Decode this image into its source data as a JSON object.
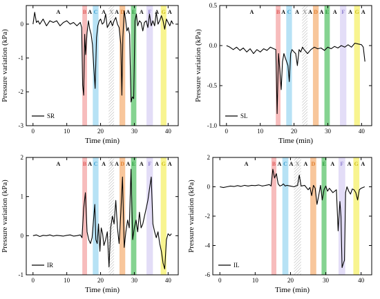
{
  "colors": {
    "A": "#ffffff",
    "B": "#f4a6a6",
    "C": "#9fd8f2",
    "X": "hatched",
    "D": "#f6b37a",
    "E": "#5cc46c",
    "F": "#d9d2f4",
    "G": "#f5f06a",
    "line": "#000000"
  },
  "band_letter_colors": {
    "A": "#000000",
    "B": "#e06060",
    "C": "#40a0d0",
    "X": "#999999",
    "D": "#e08030",
    "E": "#30a040",
    "F": "#9080d0",
    "G": "#d0c020"
  },
  "chart_data": [
    {
      "type": "line",
      "panel": "top-left",
      "xlabel": "Time (min)",
      "ylabel": "Pressure variation (kPa)",
      "xlim": [
        -2,
        43
      ],
      "ylim": [
        -3,
        0.55
      ],
      "xticks": [
        0,
        10,
        20,
        30,
        40
      ],
      "yticks": [
        -3,
        -2,
        -1,
        0
      ],
      "ytick_labels": [
        "-3",
        "-2",
        "-1",
        "0"
      ],
      "legend": {
        "label": "SR",
        "placement": "bottom-left"
      },
      "bands": [
        {
          "letter": "A",
          "start": 7.5,
          "end": 7.5
        },
        {
          "letter": "B",
          "start": 14.6,
          "end": 16.0
        },
        {
          "letter": "A",
          "start": 16.0,
          "end": 17.7
        },
        {
          "letter": "C",
          "start": 17.7,
          "end": 19.4
        },
        {
          "letter": "A",
          "start": 19.4,
          "end": 22.4
        },
        {
          "letter": "X",
          "start": 22.4,
          "end": 24.0
        },
        {
          "letter": "A",
          "start": 24.0,
          "end": 25.6
        },
        {
          "letter": "D",
          "start": 25.6,
          "end": 27.3
        },
        {
          "letter": "A",
          "start": 27.3,
          "end": 29.0
        },
        {
          "letter": "E",
          "start": 29.0,
          "end": 30.6
        },
        {
          "letter": "A",
          "start": 30.6,
          "end": 33.6
        },
        {
          "letter": "F",
          "start": 33.6,
          "end": 35.5
        },
        {
          "letter": "A",
          "start": 35.5,
          "end": 37.8
        },
        {
          "letter": "G",
          "start": 37.8,
          "end": 39.5
        },
        {
          "letter": "A",
          "start": 39.5,
          "end": 41.5
        }
      ],
      "x": [
        0,
        0.5,
        1,
        1.5,
        2,
        3,
        4,
        5,
        6,
        7,
        8,
        9,
        10,
        11,
        12,
        13,
        14,
        14.4,
        14.7,
        15.0,
        15.3,
        15.6,
        16.0,
        16.4,
        16.8,
        17.2,
        17.6,
        18.0,
        18.4,
        18.8,
        19.2,
        19.6,
        20.0,
        20.5,
        21,
        21.5,
        22,
        22.5,
        23,
        23.5,
        24,
        24.5,
        25,
        25.5,
        26,
        26.3,
        26.6,
        27,
        27.4,
        27.8,
        28.2,
        28.6,
        29.0,
        29.4,
        29.8,
        30.2,
        30.6,
        31,
        31.5,
        32,
        32.5,
        33,
        33.5,
        34,
        34.5,
        35,
        35.5,
        36,
        36.5,
        37,
        37.5,
        38,
        38.5,
        39,
        39.5,
        40,
        40.5,
        41,
        41.5
      ],
      "y": [
        0.0,
        0.35,
        0.05,
        0.1,
        0.0,
        0.15,
        -0.05,
        0.1,
        0.05,
        0.1,
        -0.05,
        0.05,
        0.1,
        0.0,
        0.05,
        -0.05,
        0.05,
        -0.1,
        -1.8,
        -2.1,
        -0.3,
        -0.9,
        -0.25,
        0.1,
        -0.15,
        -0.3,
        -0.6,
        -1.3,
        -1.9,
        -0.4,
        -0.05,
        0.1,
        0.15,
        0.0,
        0.05,
        0.3,
        -0.1,
        0.0,
        0.1,
        -0.05,
        0.1,
        0.2,
        0.0,
        -0.1,
        -0.6,
        -2.1,
        -0.4,
        0.4,
        0.15,
        -0.2,
        -0.1,
        -0.3,
        -2.3,
        -2.15,
        -2.2,
        0.1,
        0.3,
        -0.05,
        0.1,
        0.05,
        -0.2,
        0.05,
        0.1,
        -0.1,
        0.3,
        -0.05,
        0.1,
        -0.05,
        0.35,
        0.0,
        0.1,
        0.25,
        0.1,
        -0.15,
        0.15,
        0.05,
        -0.05,
        0.1,
        0.0
      ]
    },
    {
      "type": "line",
      "panel": "top-right",
      "xlabel": "Time (min)",
      "ylabel": "Pressure variation (kPa)",
      "xlim": [
        -2,
        43
      ],
      "ylim": [
        -1.0,
        0.5
      ],
      "xticks": [
        0,
        10,
        20,
        30,
        40
      ],
      "yticks": [
        -1.0,
        -0.5,
        0.0,
        0.5
      ],
      "ytick_labels": [
        "-1.0",
        "-0.5",
        "0.0",
        "0.5"
      ],
      "legend": {
        "label": "SL",
        "placement": "bottom-left"
      },
      "bands": [
        {
          "letter": "A",
          "start": 7.5,
          "end": 7.5
        },
        {
          "letter": "B",
          "start": 14.6,
          "end": 16.0
        },
        {
          "letter": "A",
          "start": 16.0,
          "end": 17.7
        },
        {
          "letter": "C",
          "start": 17.7,
          "end": 19.4
        },
        {
          "letter": "A",
          "start": 19.4,
          "end": 22.4
        },
        {
          "letter": "X",
          "start": 22.4,
          "end": 24.0
        },
        {
          "letter": "A",
          "start": 24.0,
          "end": 25.6
        },
        {
          "letter": "D",
          "start": 25.6,
          "end": 27.3
        },
        {
          "letter": "A",
          "start": 27.3,
          "end": 29.0
        },
        {
          "letter": "E",
          "start": 29.0,
          "end": 30.6
        },
        {
          "letter": "A",
          "start": 30.6,
          "end": 33.6
        },
        {
          "letter": "F",
          "start": 33.6,
          "end": 35.5
        },
        {
          "letter": "A",
          "start": 35.5,
          "end": 37.8
        },
        {
          "letter": "G",
          "start": 37.8,
          "end": 39.5
        },
        {
          "letter": "A",
          "start": 39.5,
          "end": 41.5
        }
      ],
      "x": [
        0,
        1,
        2,
        3,
        4,
        5,
        6,
        7,
        8,
        9,
        10,
        11,
        12,
        13,
        14,
        14.6,
        15.0,
        15.4,
        15.8,
        16.2,
        16.6,
        17.0,
        17.4,
        17.8,
        18.2,
        18.6,
        19.0,
        19.4,
        20,
        20.5,
        21,
        21.5,
        22,
        22.5,
        23,
        24,
        25,
        26,
        27,
        28,
        29,
        30,
        31,
        32,
        33,
        34,
        35,
        36,
        37,
        38,
        39,
        40,
        40.5,
        41
      ],
      "y": [
        0.0,
        -0.02,
        -0.05,
        -0.02,
        -0.06,
        -0.03,
        -0.08,
        -0.04,
        -0.1,
        -0.05,
        -0.08,
        -0.04,
        -0.06,
        -0.02,
        -0.04,
        -0.05,
        -0.85,
        -0.1,
        -0.3,
        -0.55,
        -0.2,
        -0.1,
        -0.15,
        -0.2,
        -0.25,
        -0.45,
        -0.1,
        -0.05,
        -0.08,
        -0.1,
        -0.25,
        -0.05,
        -0.08,
        -0.02,
        -0.05,
        -0.1,
        -0.05,
        -0.02,
        -0.04,
        -0.03,
        -0.06,
        -0.02,
        -0.04,
        -0.01,
        -0.03,
        0.0,
        -0.02,
        0.01,
        -0.02,
        0.03,
        0.02,
        0.01,
        -0.02,
        -0.2
      ]
    },
    {
      "type": "line",
      "panel": "bottom-left",
      "xlabel": "Time (min)",
      "ylabel": "Pressure variation (kPa)",
      "xlim": [
        -2,
        43
      ],
      "ylim": [
        -1,
        2
      ],
      "xticks": [
        0,
        10,
        20,
        30,
        40
      ],
      "yticks": [
        -1,
        0,
        1,
        2
      ],
      "ytick_labels": [
        "-1",
        "0",
        "1",
        "2"
      ],
      "legend": {
        "label": "IR",
        "placement": "bottom-left"
      },
      "bands": [
        {
          "letter": "A",
          "start": 7.5,
          "end": 7.5
        },
        {
          "letter": "B",
          "start": 14.6,
          "end": 16.0
        },
        {
          "letter": "A",
          "start": 16.0,
          "end": 17.7
        },
        {
          "letter": "C",
          "start": 17.7,
          "end": 19.4
        },
        {
          "letter": "A",
          "start": 19.4,
          "end": 22.4
        },
        {
          "letter": "X",
          "start": 22.4,
          "end": 24.0
        },
        {
          "letter": "A",
          "start": 24.0,
          "end": 25.6
        },
        {
          "letter": "D",
          "start": 25.6,
          "end": 27.3
        },
        {
          "letter": "A",
          "start": 27.3,
          "end": 29.0
        },
        {
          "letter": "E",
          "start": 29.0,
          "end": 30.6
        },
        {
          "letter": "A",
          "start": 30.6,
          "end": 33.6
        },
        {
          "letter": "F",
          "start": 33.6,
          "end": 35.5
        },
        {
          "letter": "A",
          "start": 35.5,
          "end": 37.8
        },
        {
          "letter": "G",
          "start": 37.8,
          "end": 39.5
        },
        {
          "letter": "A",
          "start": 39.5,
          "end": 41.5
        }
      ],
      "x": [
        0,
        1,
        2,
        3,
        4,
        5,
        6,
        7,
        8,
        9,
        10,
        11,
        12,
        13,
        14,
        14.5,
        15.0,
        15.5,
        16.0,
        16.5,
        17.0,
        17.5,
        18.0,
        18.3,
        18.6,
        19.0,
        19.4,
        19.8,
        20.2,
        20.6,
        21.0,
        21.5,
        22.0,
        22.5,
        23.0,
        23.5,
        24.0,
        24.5,
        25.0,
        25.5,
        26.0,
        26.5,
        27.0,
        27.5,
        28.0,
        28.5,
        29.0,
        29.5,
        30.0,
        30.5,
        31.0,
        31.5,
        32.0,
        32.5,
        33.0,
        33.5,
        34.0,
        34.5,
        35.0,
        35.5,
        36.0,
        36.5,
        37.0,
        37.5,
        38.0,
        38.5,
        39.0,
        39.5,
        40.0,
        40.5,
        41.0
      ],
      "y": [
        0.0,
        0.02,
        -0.02,
        0.01,
        0.0,
        0.02,
        -0.01,
        0.01,
        0.0,
        -0.01,
        0.01,
        0.02,
        -0.01,
        0.0,
        0.02,
        -0.05,
        0.7,
        1.1,
        0.1,
        -0.1,
        -0.2,
        -0.05,
        0.5,
        0.8,
        -0.1,
        -0.2,
        0.3,
        -0.4,
        0.2,
        0.05,
        -0.25,
        -0.1,
        0.1,
        -0.8,
        0.2,
        0.5,
        0.3,
        0.9,
        0.2,
        -0.2,
        0.6,
        1.5,
        -0.3,
        0.1,
        0.4,
        0.2,
        1.7,
        -0.1,
        0.2,
        0.4,
        0.1,
        0.6,
        0.2,
        0.3,
        0.5,
        0.7,
        0.9,
        1.2,
        1.5,
        0.3,
        0.1,
        -0.05,
        0.1,
        -0.2,
        -0.4,
        -0.7,
        -0.85,
        -0.1,
        0.05,
        0.0,
        0.05
      ]
    },
    {
      "type": "line",
      "panel": "bottom-right",
      "xlabel": "Time (min)",
      "ylabel": "Pressure variation (kPa)",
      "xlim": [
        -2,
        43
      ],
      "ylim": [
        -6,
        2
      ],
      "xticks": [
        0,
        10,
        20,
        30,
        40
      ],
      "yticks": [
        -6,
        -4,
        -2,
        0,
        2
      ],
      "ytick_labels": [
        "-6",
        "-4",
        "-2",
        "0",
        "2"
      ],
      "legend": {
        "label": "IL",
        "placement": "bottom-left"
      },
      "bands": [
        {
          "letter": "A",
          "start": 7.5,
          "end": 7.5
        },
        {
          "letter": "B",
          "start": 14.6,
          "end": 16.0
        },
        {
          "letter": "A",
          "start": 16.0,
          "end": 17.7
        },
        {
          "letter": "C",
          "start": 17.7,
          "end": 19.4
        },
        {
          "letter": "A",
          "start": 19.4,
          "end": 21.0
        },
        {
          "letter": "X",
          "start": 21.0,
          "end": 23.0
        },
        {
          "letter": "A",
          "start": 23.0,
          "end": 25.6
        },
        {
          "letter": "D",
          "start": 25.6,
          "end": 27.3
        },
        {
          "letter": "E",
          "start": 28.8,
          "end": 30.2
        },
        {
          "letter": "A",
          "start": 30.2,
          "end": 33.6
        },
        {
          "letter": "F",
          "start": 33.6,
          "end": 35.5
        },
        {
          "letter": "A",
          "start": 35.5,
          "end": 37.8
        },
        {
          "letter": "G",
          "start": 37.8,
          "end": 39.5
        },
        {
          "letter": "A",
          "start": 39.5,
          "end": 41.5
        }
      ],
      "x": [
        0,
        1,
        2,
        3,
        4,
        5,
        6,
        7,
        8,
        9,
        10,
        11,
        12,
        13,
        14,
        14.5,
        15.0,
        15.5,
        16.0,
        16.5,
        17.0,
        17.5,
        18.0,
        18.5,
        19.0,
        20.0,
        21.0,
        22.0,
        22.5,
        23.0,
        24.0,
        25.0,
        25.5,
        26.0,
        26.5,
        27.0,
        27.5,
        28.0,
        28.5,
        29.0,
        29.5,
        30.0,
        30.5,
        31.0,
        32.0,
        33.0,
        33.5,
        34.0,
        34.3,
        34.6,
        35.0,
        35.3,
        35.6,
        36.0,
        36.5,
        37.0,
        37.5,
        38.0,
        38.5,
        39.0,
        39.5,
        40.0,
        41.0
      ],
      "y": [
        0.0,
        -0.05,
        0.0,
        0.05,
        0.02,
        0.08,
        0.03,
        0.1,
        0.05,
        0.1,
        0.08,
        0.12,
        0.05,
        0.1,
        0.15,
        0.05,
        1.2,
        0.6,
        0.9,
        0.2,
        0.05,
        0.1,
        0.2,
        0.05,
        0.1,
        0.05,
        0.0,
        0.1,
        0.8,
        0.05,
        0.1,
        -0.2,
        -0.05,
        -0.6,
        0.1,
        -0.1,
        -1.2,
        -0.6,
        0.1,
        -0.9,
        -0.2,
        0.05,
        -0.3,
        -0.1,
        -0.4,
        -0.2,
        -3.0,
        -1.0,
        -2.0,
        -5.5,
        -5.2,
        -5.0,
        -0.4,
        0.0,
        -0.3,
        -0.5,
        -0.15,
        -0.2,
        -0.4,
        -0.9,
        -0.2,
        -0.1,
        0.0
      ]
    }
  ]
}
